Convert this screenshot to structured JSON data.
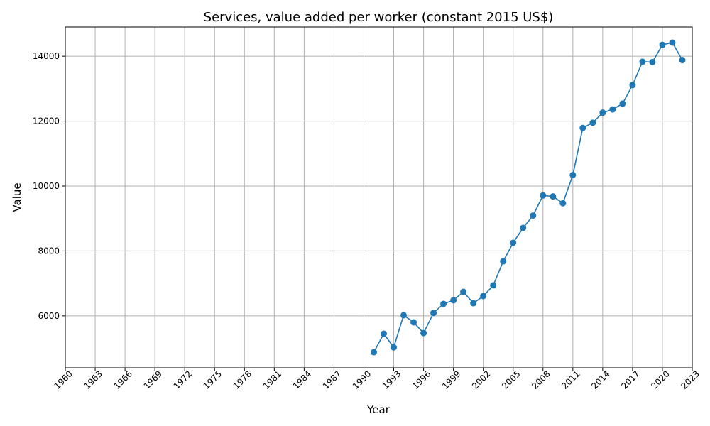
{
  "chart_data": {
    "type": "line",
    "title": "Services, value added per worker (constant 2015 US$)",
    "xlabel": "Year",
    "ylabel": "Value",
    "xlim": [
      1960,
      2023
    ],
    "ylim": [
      4400,
      14900
    ],
    "x_ticks": [
      "1960",
      "1963",
      "1966",
      "1969",
      "1972",
      "1975",
      "1978",
      "1981",
      "1984",
      "1987",
      "1990",
      "1993",
      "1996",
      "1999",
      "2002",
      "2005",
      "2008",
      "2011",
      "2014",
      "2017",
      "2020",
      "2023"
    ],
    "y_ticks": [
      "6000",
      "8000",
      "10000",
      "12000",
      "14000"
    ],
    "grid": true,
    "color": "#1f77b4",
    "series": [
      {
        "x": [
          1991,
          1992,
          1993,
          1994,
          1995,
          1996,
          1997,
          1998,
          1999,
          2000,
          2001,
          2002,
          2003,
          2004,
          2005,
          2006,
          2007,
          2008,
          2009,
          2010,
          2011,
          2012,
          2013,
          2014,
          2015,
          2016,
          2017,
          2018,
          2019,
          2020,
          2021,
          2022
        ],
        "values": [
          4880,
          5450,
          5030,
          6020,
          5800,
          5470,
          6090,
          6370,
          6480,
          6740,
          6390,
          6610,
          6940,
          7680,
          8250,
          8710,
          9090,
          9710,
          9680,
          9470,
          10340,
          11790,
          11950,
          12260,
          12360,
          12540,
          13110,
          13830,
          13820,
          14350,
          14420,
          13880
        ]
      }
    ]
  }
}
